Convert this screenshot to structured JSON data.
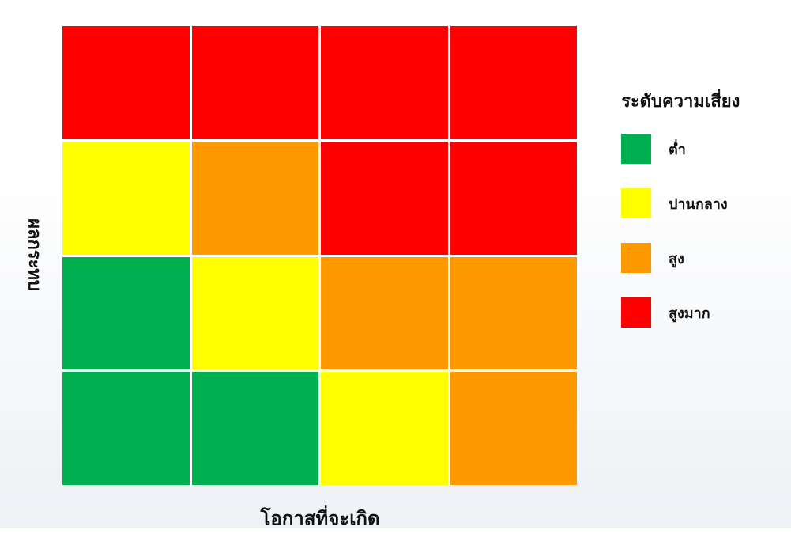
{
  "chart_data": {
    "type": "heatmap",
    "title": "",
    "xlabel": "โอกาสที่จะเกิด",
    "ylabel": "ผลกระทบ",
    "legend_title": "ระดับความเสี่ยง",
    "legend_placement": "right",
    "levels": [
      {
        "key": "low",
        "label": "ต่ำ",
        "color": "#00b050"
      },
      {
        "key": "medium",
        "label": "ปานกลาง",
        "color": "#ffff00"
      },
      {
        "key": "high",
        "label": "สูง",
        "color": "#ff9900"
      },
      {
        "key": "very_high",
        "label": "สูงมาก",
        "color": "#ff0000"
      }
    ],
    "rows_top_to_bottom": [
      [
        "very_high",
        "very_high",
        "very_high",
        "very_high"
      ],
      [
        "medium",
        "high",
        "very_high",
        "very_high"
      ],
      [
        "low",
        "medium",
        "high",
        "high"
      ],
      [
        "low",
        "low",
        "medium",
        "high"
      ]
    ]
  }
}
